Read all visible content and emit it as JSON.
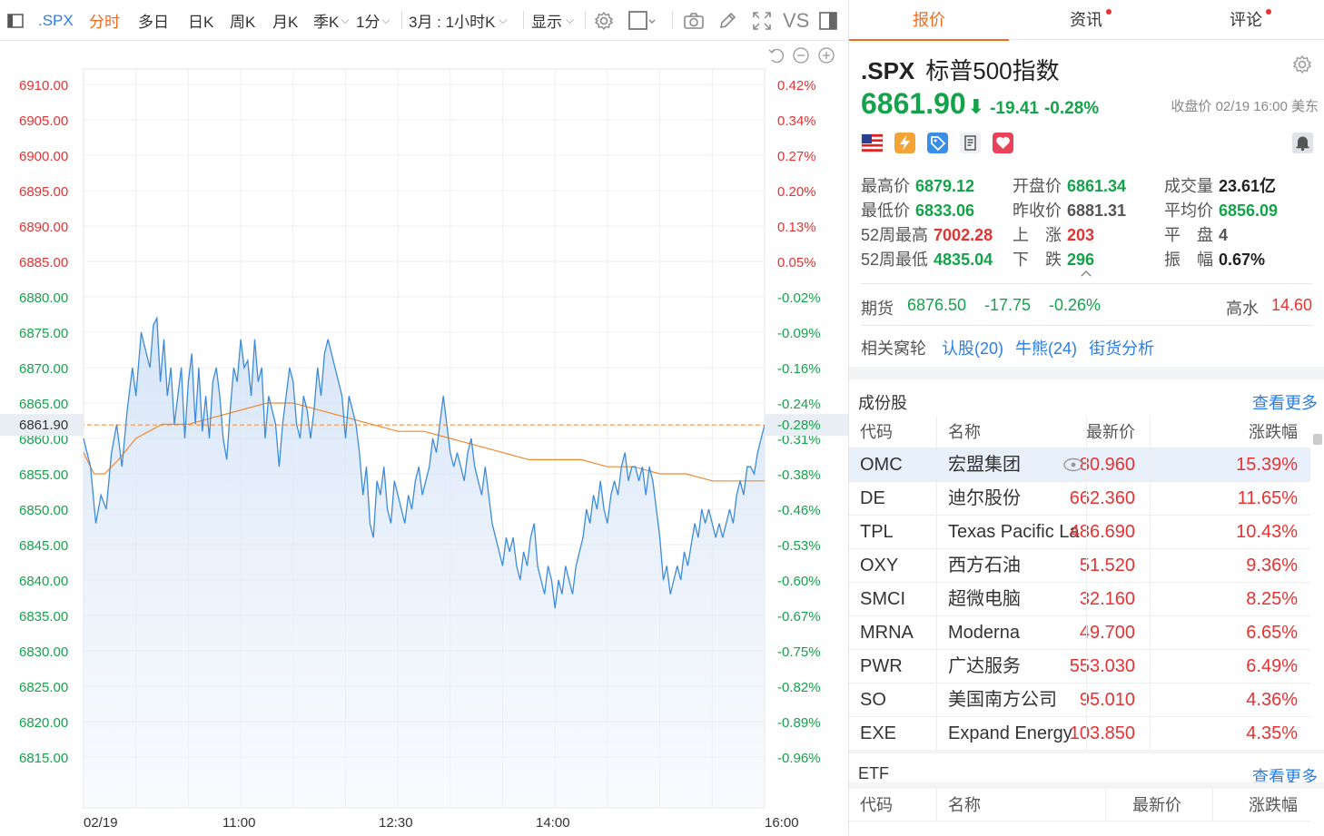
{
  "toolbar": {
    "code": ".SPX",
    "tabs": [
      "分时",
      "多日",
      "日K",
      "周K",
      "月K",
      "季K",
      "1分",
      "3月 : 1小时K",
      "显示"
    ],
    "vs": "VS"
  },
  "chart": {
    "y_left": [
      "6910.00",
      "6905.00",
      "6900.00",
      "6895.00",
      "6890.00",
      "6885.00",
      "6880.00",
      "6875.00",
      "6870.00",
      "6865.00",
      "6860.00",
      "6855.00",
      "6850.00",
      "6845.00",
      "6840.00",
      "6835.00",
      "6830.00",
      "6825.00",
      "6820.00",
      "6815.00"
    ],
    "y_right": [
      "0.42%",
      "0.34%",
      "0.27%",
      "0.20%",
      "0.13%",
      "0.05%",
      "-0.02%",
      "-0.09%",
      "-0.16%",
      "-0.24%",
      "-0.31%",
      "-0.38%",
      "-0.46%",
      "-0.53%",
      "-0.60%",
      "-0.67%",
      "-0.75%",
      "-0.82%",
      "-0.89%",
      "-0.96%"
    ],
    "x_labels": [
      "02/19",
      "11:00",
      "12:30",
      "14:00",
      "16:00"
    ],
    "current_label": "6861.90",
    "current_pct": "-0.28%",
    "colors": {
      "price": "#3d8bdb",
      "avg": "#f0882e",
      "ref": "#f0882e",
      "green": "#14a34a",
      "red": "#e63232"
    }
  },
  "chart_data": {
    "type": "line",
    "ylim": [
      6810,
      6915
    ],
    "xlim_minutes": [
      0,
      390
    ],
    "series": [
      {
        "name": "price",
        "points": [
          [
            0,
            6860
          ],
          [
            4,
            6856
          ],
          [
            7,
            6848
          ],
          [
            10,
            6852
          ],
          [
            13,
            6850
          ],
          [
            16,
            6858
          ],
          [
            19,
            6862
          ],
          [
            22,
            6856
          ],
          [
            25,
            6864
          ],
          [
            28,
            6870
          ],
          [
            30,
            6866
          ],
          [
            33,
            6875
          ],
          [
            36,
            6872
          ],
          [
            38,
            6870
          ],
          [
            40,
            6876
          ],
          [
            42,
            6877
          ],
          [
            44,
            6868
          ],
          [
            46,
            6874
          ],
          [
            48,
            6866
          ],
          [
            50,
            6870
          ],
          [
            52,
            6862
          ],
          [
            54,
            6866
          ],
          [
            56,
            6870
          ],
          [
            58,
            6860
          ],
          [
            60,
            6868
          ],
          [
            62,
            6872
          ],
          [
            64,
            6862
          ],
          [
            66,
            6870
          ],
          [
            68,
            6861
          ],
          [
            70,
            6866
          ],
          [
            72,
            6860
          ],
          [
            74,
            6868
          ],
          [
            76,
            6870
          ],
          [
            78,
            6866
          ],
          [
            80,
            6860
          ],
          [
            82,
            6857
          ],
          [
            84,
            6864
          ],
          [
            86,
            6870
          ],
          [
            88,
            6868
          ],
          [
            90,
            6874
          ],
          [
            92,
            6870
          ],
          [
            94,
            6871
          ],
          [
            96,
            6866
          ],
          [
            98,
            6874
          ],
          [
            100,
            6868
          ],
          [
            102,
            6870
          ],
          [
            104,
            6860
          ],
          [
            106,
            6866
          ],
          [
            108,
            6864
          ],
          [
            110,
            6862
          ],
          [
            112,
            6856
          ],
          [
            114,
            6862
          ],
          [
            116,
            6866
          ],
          [
            118,
            6870
          ],
          [
            120,
            6868
          ],
          [
            122,
            6862
          ],
          [
            124,
            6860
          ],
          [
            126,
            6866
          ],
          [
            128,
            6864
          ],
          [
            130,
            6860
          ],
          [
            132,
            6864
          ],
          [
            134,
            6870
          ],
          [
            136,
            6866
          ],
          [
            138,
            6872
          ],
          [
            140,
            6874
          ],
          [
            142,
            6872
          ],
          [
            144,
            6870
          ],
          [
            146,
            6868
          ],
          [
            148,
            6866
          ],
          [
            150,
            6860
          ],
          [
            152,
            6866
          ],
          [
            154,
            6864
          ],
          [
            156,
            6862
          ],
          [
            158,
            6858
          ],
          [
            160,
            6852
          ],
          [
            162,
            6856
          ],
          [
            164,
            6848
          ],
          [
            166,
            6846
          ],
          [
            168,
            6854
          ],
          [
            170,
            6852
          ],
          [
            172,
            6856
          ],
          [
            174,
            6850
          ],
          [
            176,
            6848
          ],
          [
            178,
            6854
          ],
          [
            180,
            6852
          ],
          [
            182,
            6850
          ],
          [
            184,
            6848
          ],
          [
            186,
            6852
          ],
          [
            188,
            6850
          ],
          [
            190,
            6854
          ],
          [
            192,
            6856
          ],
          [
            194,
            6852
          ],
          [
            196,
            6854
          ],
          [
            198,
            6856
          ],
          [
            200,
            6860
          ],
          [
            202,
            6858
          ],
          [
            204,
            6862
          ],
          [
            206,
            6866
          ],
          [
            208,
            6862
          ],
          [
            210,
            6858
          ],
          [
            212,
            6856
          ],
          [
            214,
            6858
          ],
          [
            216,
            6856
          ],
          [
            218,
            6854
          ],
          [
            220,
            6858
          ],
          [
            222,
            6860
          ],
          [
            224,
            6856
          ],
          [
            226,
            6854
          ],
          [
            228,
            6852
          ],
          [
            230,
            6856
          ],
          [
            232,
            6852
          ],
          [
            234,
            6848
          ],
          [
            236,
            6846
          ],
          [
            238,
            6844
          ],
          [
            240,
            6842
          ],
          [
            242,
            6846
          ],
          [
            244,
            6844
          ],
          [
            246,
            6846
          ],
          [
            248,
            6842
          ],
          [
            250,
            6840
          ],
          [
            252,
            6844
          ],
          [
            254,
            6842
          ],
          [
            256,
            6846
          ],
          [
            258,
            6848
          ],
          [
            260,
            6842
          ],
          [
            262,
            6840
          ],
          [
            264,
            6838
          ],
          [
            266,
            6842
          ],
          [
            268,
            6840
          ],
          [
            270,
            6836
          ],
          [
            272,
            6840
          ],
          [
            274,
            6838
          ],
          [
            276,
            6842
          ],
          [
            278,
            6840
          ],
          [
            280,
            6838
          ],
          [
            282,
            6842
          ],
          [
            284,
            6844
          ],
          [
            286,
            6846
          ],
          [
            288,
            6850
          ],
          [
            290,
            6848
          ],
          [
            292,
            6852
          ],
          [
            294,
            6850
          ],
          [
            296,
            6854
          ],
          [
            298,
            6850
          ],
          [
            300,
            6848
          ],
          [
            302,
            6852
          ],
          [
            304,
            6854
          ],
          [
            306,
            6852
          ],
          [
            308,
            6856
          ],
          [
            310,
            6858
          ],
          [
            312,
            6854
          ],
          [
            314,
            6856
          ],
          [
            316,
            6856
          ],
          [
            318,
            6854
          ],
          [
            320,
            6856
          ],
          [
            322,
            6852
          ],
          [
            324,
            6856
          ],
          [
            326,
            6854
          ],
          [
            328,
            6850
          ],
          [
            330,
            6846
          ],
          [
            332,
            6840
          ],
          [
            334,
            6842
          ],
          [
            336,
            6838
          ],
          [
            338,
            6840
          ],
          [
            340,
            6842
          ],
          [
            342,
            6840
          ],
          [
            344,
            6844
          ],
          [
            346,
            6842
          ],
          [
            348,
            6845
          ],
          [
            350,
            6848
          ],
          [
            352,
            6846
          ],
          [
            354,
            6850
          ],
          [
            356,
            6848
          ],
          [
            358,
            6850
          ],
          [
            360,
            6848
          ],
          [
            362,
            6846
          ],
          [
            364,
            6848
          ],
          [
            366,
            6846
          ],
          [
            368,
            6848
          ],
          [
            370,
            6850
          ],
          [
            372,
            6848
          ],
          [
            374,
            6852
          ],
          [
            376,
            6854
          ],
          [
            378,
            6852
          ],
          [
            380,
            6856
          ],
          [
            382,
            6856
          ],
          [
            384,
            6855
          ],
          [
            386,
            6858
          ],
          [
            388,
            6860
          ],
          [
            390,
            6861.9
          ]
        ]
      },
      {
        "name": "avg",
        "points": [
          [
            0,
            6858
          ],
          [
            6,
            6855
          ],
          [
            12,
            6855
          ],
          [
            20,
            6857
          ],
          [
            30,
            6860
          ],
          [
            45,
            6862
          ],
          [
            60,
            6862
          ],
          [
            75,
            6863
          ],
          [
            90,
            6864
          ],
          [
            105,
            6865
          ],
          [
            120,
            6865
          ],
          [
            135,
            6864
          ],
          [
            150,
            6863
          ],
          [
            165,
            6862
          ],
          [
            180,
            6861
          ],
          [
            195,
            6861
          ],
          [
            210,
            6860
          ],
          [
            225,
            6859
          ],
          [
            240,
            6858
          ],
          [
            255,
            6857
          ],
          [
            270,
            6857
          ],
          [
            285,
            6857
          ],
          [
            300,
            6856
          ],
          [
            315,
            6856
          ],
          [
            330,
            6855
          ],
          [
            345,
            6855
          ],
          [
            360,
            6854
          ],
          [
            375,
            6854
          ],
          [
            390,
            6854
          ]
        ]
      }
    ],
    "ref_level": 6861.9
  },
  "panel": {
    "tabs": [
      {
        "label": "报价",
        "dot": false
      },
      {
        "label": "资讯",
        "dot": true
      },
      {
        "label": "评论",
        "dot": true
      }
    ],
    "code": ".SPX",
    "name": "标普500指数",
    "last": "6861.90",
    "change": "-19.41",
    "change_pct": "-0.28%",
    "close_info": "收盘价 02/19 16:00 美东",
    "stats": [
      [
        {
          "k": "最高价",
          "v": "6879.12",
          "c": "g"
        },
        {
          "k": "开盘价",
          "v": "6861.34",
          "c": "g"
        },
        {
          "k": "成交量",
          "v": "23.61亿",
          "c": "b"
        }
      ],
      [
        {
          "k": "最低价",
          "v": "6833.06",
          "c": "g"
        },
        {
          "k": "昨收价",
          "v": "6881.31",
          "c": "n"
        },
        {
          "k": "平均价",
          "v": "6856.09",
          "c": "g"
        }
      ],
      [
        {
          "k": "52周最高",
          "v": "7002.28",
          "c": "r"
        },
        {
          "k": "上　涨",
          "v": "203",
          "c": "r"
        },
        {
          "k": "平　盘",
          "v": "4",
          "c": "n"
        }
      ],
      [
        {
          "k": "52周最低",
          "v": "4835.04",
          "c": "g"
        },
        {
          "k": "下　跌",
          "v": "296",
          "c": "g"
        },
        {
          "k": "振　幅",
          "v": "0.67%",
          "c": "b"
        }
      ]
    ],
    "futures": {
      "label": "期货",
      "price": "6876.50",
      "chg": "-17.75",
      "pct": "-0.26%",
      "hw_label": "高水",
      "hw": "14.60"
    },
    "warrants": {
      "label": "相关窝轮",
      "call": "认股(20)",
      "bull": "牛熊(24)",
      "analysis": "街货分析"
    },
    "constituents": {
      "title": "成份股",
      "more": "查看更多",
      "headers": [
        "代码",
        "名称",
        "最新价",
        "涨跌幅"
      ],
      "rows": [
        [
          "OMC",
          "宏盟集团",
          "80.960",
          "15.39%"
        ],
        [
          "DE",
          "迪尔股份",
          "662.360",
          "11.65%"
        ],
        [
          "TPL",
          "Texas Pacific La",
          "486.690",
          "10.43%"
        ],
        [
          "OXY",
          "西方石油",
          "51.520",
          "9.36%"
        ],
        [
          "SMCI",
          "超微电脑",
          "32.160",
          "8.25%"
        ],
        [
          "MRNA",
          "Moderna",
          "49.700",
          "6.65%"
        ],
        [
          "PWR",
          "广达服务",
          "553.030",
          "6.49%"
        ],
        [
          "SO",
          "美国南方公司",
          "95.010",
          "4.36%"
        ],
        [
          "EXE",
          "Expand Energy",
          "103.850",
          "4.35%"
        ]
      ]
    },
    "etf": {
      "title": "ETF",
      "more": "查看更多",
      "headers": [
        "代码",
        "名称",
        "最新价",
        "涨跌幅"
      ]
    }
  }
}
